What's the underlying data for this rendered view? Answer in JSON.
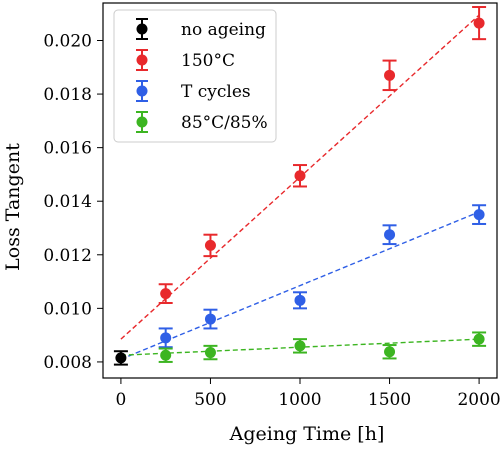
{
  "chart_data": {
    "type": "scatter",
    "xlabel": "Ageing Time [h]",
    "ylabel": "Loss Tangent",
    "xlim": [
      -100,
      2100
    ],
    "ylim": [
      0.0074,
      0.0214
    ],
    "xticks": [
      0,
      500,
      1000,
      1500,
      2000
    ],
    "xtick_labels": [
      "0",
      "500",
      "1000",
      "1500",
      "2000"
    ],
    "yticks": [
      0.008,
      0.01,
      0.012,
      0.014,
      0.016,
      0.018,
      0.02
    ],
    "ytick_labels": [
      "0.008",
      "0.010",
      "0.012",
      "0.014",
      "0.016",
      "0.018",
      "0.020"
    ],
    "grid": false,
    "legend_position": "top-left",
    "series": [
      {
        "name": "no ageing",
        "color": "#000000",
        "x": [
          0
        ],
        "y": [
          0.00815
        ],
        "yerr": [
          0.00025
        ],
        "fit": null
      },
      {
        "name": "150°C",
        "color": "#e8292c",
        "x": [
          250,
          500,
          1000,
          1500,
          2000
        ],
        "y": [
          0.01055,
          0.01235,
          0.01495,
          0.0187,
          0.02065
        ],
        "yerr": [
          0.00035,
          0.0004,
          0.0004,
          0.00055,
          0.0006
        ],
        "fit": {
          "x": [
            0,
            2000
          ],
          "y": [
            0.00885,
            0.02095
          ]
        }
      },
      {
        "name": "T cycles",
        "color": "#2f5fe6",
        "x": [
          250,
          500,
          1000,
          1500,
          2000
        ],
        "y": [
          0.0089,
          0.0096,
          0.0103,
          0.01275,
          0.0135
        ],
        "yerr": [
          0.00035,
          0.00035,
          0.0003,
          0.00035,
          0.00035
        ],
        "fit": {
          "x": [
            0,
            2000
          ],
          "y": [
            0.0081,
            0.0136
          ]
        }
      },
      {
        "name": "85°C/85%",
        "color": "#3cb521",
        "x": [
          250,
          500,
          1000,
          1500,
          2000
        ],
        "y": [
          0.00825,
          0.00835,
          0.0086,
          0.00838,
          0.00885
        ],
        "yerr": [
          0.00025,
          0.00025,
          0.00025,
          0.00025,
          0.00025
        ],
        "fit": {
          "x": [
            0,
            2000
          ],
          "y": [
            0.00825,
            0.00885
          ]
        }
      }
    ]
  }
}
